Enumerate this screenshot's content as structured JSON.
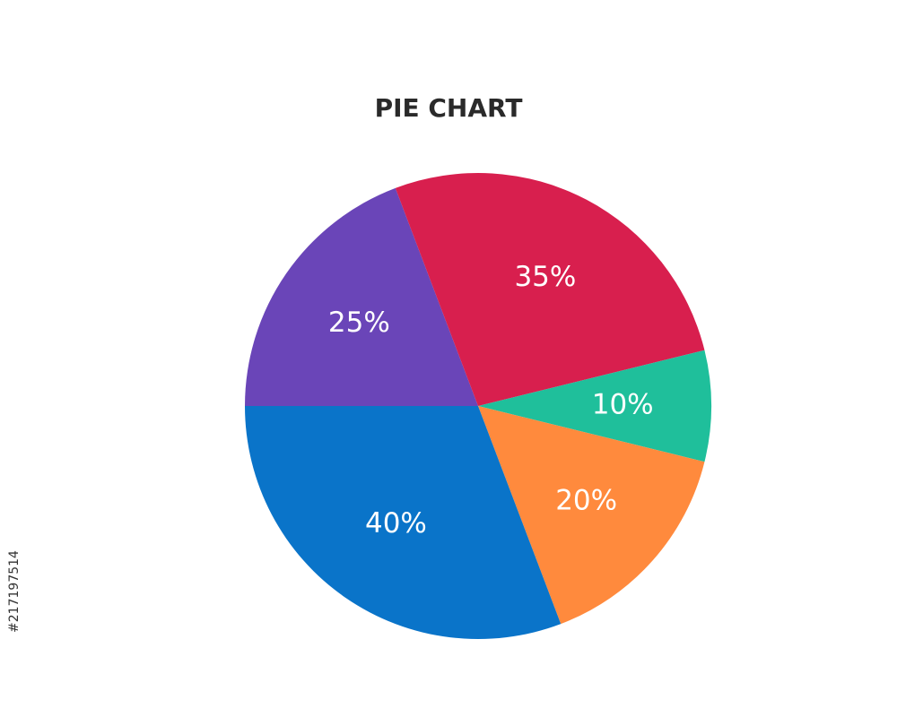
{
  "chart_data": {
    "type": "pie",
    "title": "PIE CHART",
    "values": [
      25,
      35,
      10,
      20,
      40
    ],
    "value_labels": [
      "25%",
      "35%",
      "10%",
      "20%",
      "40%"
    ],
    "colors": [
      "#6a45b8",
      "#d81f4e",
      "#1fbf9b",
      "#ff8a3d",
      "#0a74c9"
    ]
  },
  "side_text": "#217197514"
}
